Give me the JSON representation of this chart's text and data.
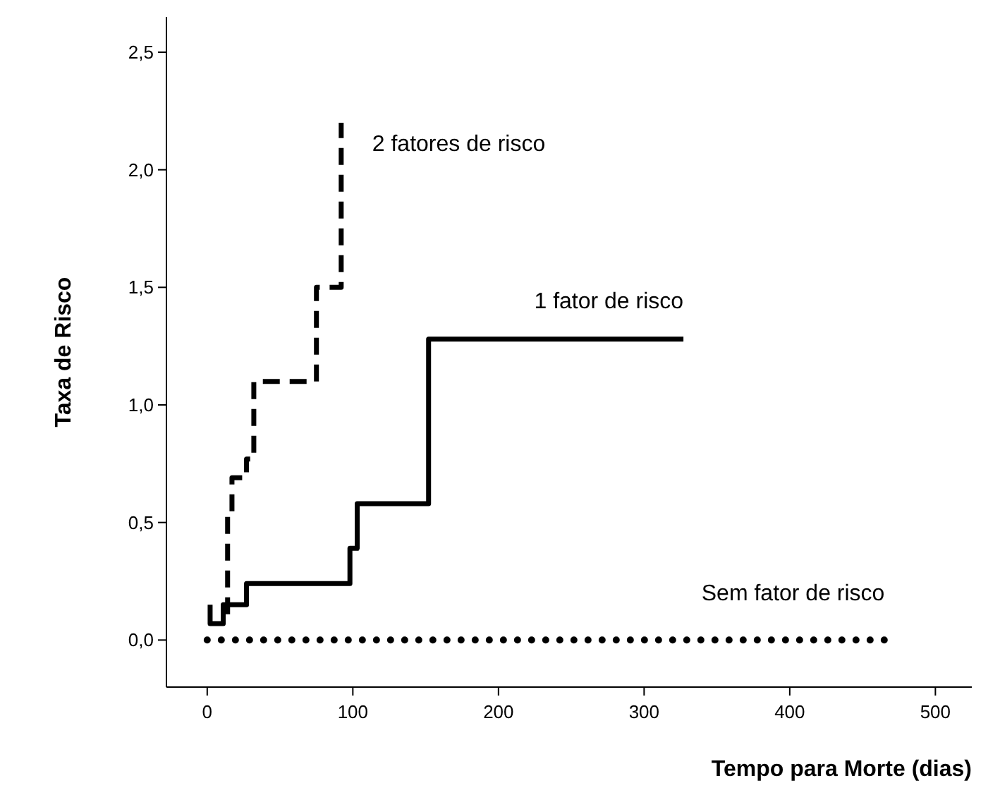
{
  "chart_data": {
    "type": "step",
    "xlabel": "Tempo para Morte (dias)",
    "ylabel": "Taxa de Risco",
    "xlim": [
      -28,
      525
    ],
    "xticks": [
      0,
      100,
      200,
      300,
      400,
      500
    ],
    "ylim": [
      -0.2,
      2.65
    ],
    "yticks": [
      {
        "value": 0,
        "label": "0,0"
      },
      {
        "value": 0.5,
        "label": "0,5"
      },
      {
        "value": 1,
        "label": "1,0"
      },
      {
        "value": 1.5,
        "label": "1,5"
      },
      {
        "value": 2,
        "label": "2,0"
      },
      {
        "value": 2.5,
        "label": "2,5"
      }
    ],
    "grid": false,
    "series": [
      {
        "name": "2 fatores de risco",
        "color": "#000000",
        "line_style": "dashed",
        "x": [
          14,
          14,
          17,
          27,
          32,
          75,
          92
        ],
        "values": [
          0.11,
          0.54,
          0.69,
          0.77,
          1.1,
          1.5,
          2.2
        ]
      },
      {
        "name": "1 fator de risco",
        "color": "#000000",
        "line_style": "solid",
        "x": [
          2,
          2,
          11,
          27,
          98,
          103,
          152,
          327
        ],
        "values": [
          0.15,
          0.07,
          0.15,
          0.24,
          0.39,
          0.58,
          1.28,
          1.28
        ]
      },
      {
        "name": "Sem fator de risco",
        "color": "#000000",
        "line_style": "dotted",
        "x": [
          0,
          470
        ],
        "values": [
          0,
          0
        ]
      }
    ]
  }
}
